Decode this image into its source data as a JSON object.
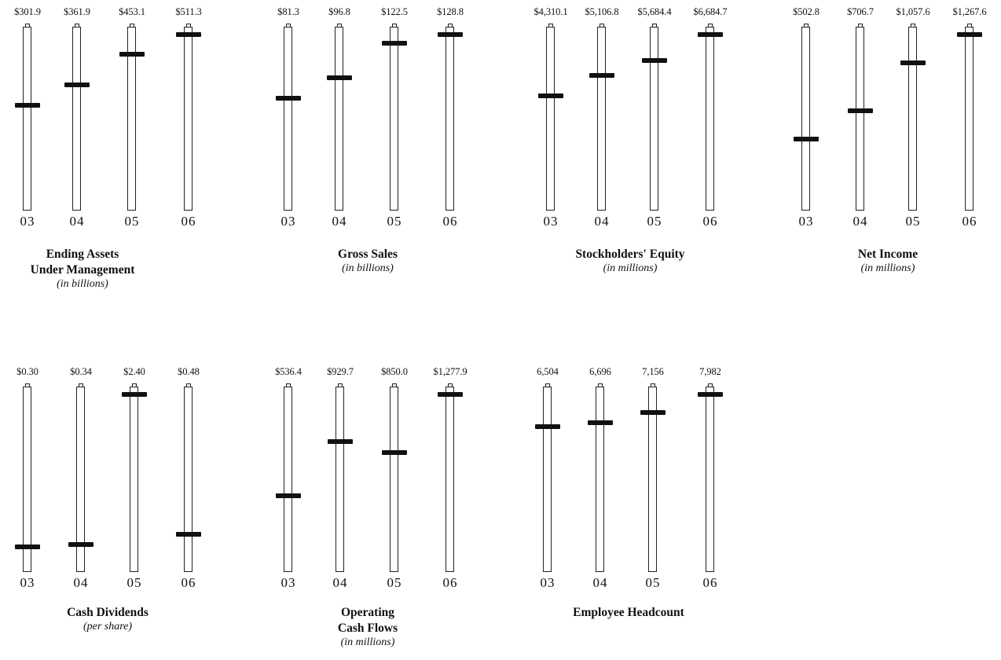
{
  "chart_data": [
    {
      "type": "bar",
      "title": [
        "Ending Assets",
        "Under Management"
      ],
      "subtitle": "(in billions)",
      "categories": [
        "03",
        "04",
        "05",
        "06"
      ],
      "value_labels": [
        "$301.9",
        "$361.9",
        "$453.1",
        "$511.3"
      ],
      "values": [
        301.9,
        361.9,
        453.1,
        511.3
      ]
    },
    {
      "type": "bar",
      "title": [
        "Gross Sales"
      ],
      "subtitle": "(in billions)",
      "categories": [
        "03",
        "04",
        "05",
        "06"
      ],
      "value_labels": [
        "$81.3",
        "$96.8",
        "$122.5",
        "$128.8"
      ],
      "values": [
        81.3,
        96.8,
        122.5,
        128.8
      ]
    },
    {
      "type": "bar",
      "title": [
        "Stockholders' Equity"
      ],
      "subtitle": "(in millions)",
      "categories": [
        "03",
        "04",
        "05",
        "06"
      ],
      "value_labels": [
        "$4,310.1",
        "$5,106.8",
        "$5,684.4",
        "$6,684.7"
      ],
      "values": [
        4310.1,
        5106.8,
        5684.4,
        6684.7
      ]
    },
    {
      "type": "bar",
      "title": [
        "Net Income"
      ],
      "subtitle": "(in millions)",
      "categories": [
        "03",
        "04",
        "05",
        "06"
      ],
      "value_labels": [
        "$502.8",
        "$706.7",
        "$1,057.6",
        "$1,267.6"
      ],
      "values": [
        502.8,
        706.7,
        1057.6,
        1267.6
      ]
    },
    {
      "type": "bar",
      "title": [
        "Cash Dividends"
      ],
      "subtitle": "(per share)",
      "categories": [
        "03",
        "04",
        "05",
        "06"
      ],
      "value_labels": [
        "$0.30",
        "$0.34",
        "$2.40",
        "$0.48"
      ],
      "values": [
        0.3,
        0.34,
        2.4,
        0.48
      ]
    },
    {
      "type": "bar",
      "title": [
        "Operating",
        "Cash Flows"
      ],
      "subtitle": "(in millions)",
      "categories": [
        "03",
        "04",
        "05",
        "06"
      ],
      "value_labels": [
        "$536.4",
        "$929.7",
        "$850.0",
        "$1,277.9"
      ],
      "values": [
        536.4,
        929.7,
        850.0,
        1277.9
      ]
    },
    {
      "type": "bar",
      "title": [
        "Employee Headcount"
      ],
      "subtitle": "",
      "categories": [
        "03",
        "04",
        "05",
        "06"
      ],
      "value_labels": [
        "6,504",
        "6,696",
        "7,156",
        "7,982"
      ],
      "values": [
        6504,
        6696,
        7156,
        7982
      ]
    }
  ]
}
